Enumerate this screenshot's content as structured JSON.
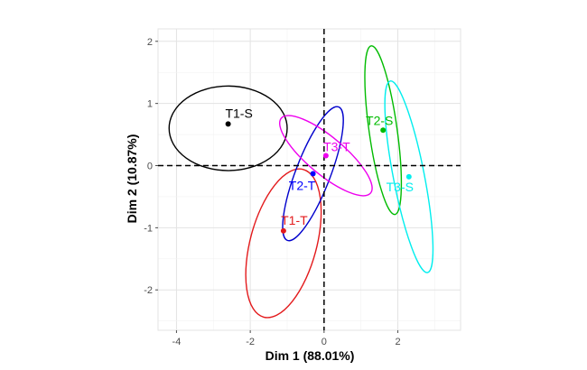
{
  "chart_data": {
    "type": "scatter",
    "xlabel": "Dim 1 (88.01%)",
    "ylabel": "Dim 2 (10.87%)",
    "xlim": [
      -4.5,
      3.7
    ],
    "ylim": [
      -2.65,
      2.2
    ],
    "x_ticks": [
      -4,
      -2,
      0,
      2
    ],
    "y_ticks": [
      -2,
      -1,
      0,
      1,
      2
    ],
    "x_tick_labels": [
      "-4",
      "-2",
      "0",
      "2"
    ],
    "y_tick_labels": [
      "-2",
      "-1",
      "0",
      "1",
      "2"
    ],
    "grid": true,
    "reference_lines": {
      "x": 0,
      "y": 0,
      "style": "dashed"
    },
    "points": [
      {
        "label": "T1-S",
        "x": -2.6,
        "y": 0.67,
        "color": "#000000"
      },
      {
        "label": "T1-T",
        "x": -1.1,
        "y": -1.05,
        "color": "#e31a1c"
      },
      {
        "label": "T2-T",
        "x": -0.3,
        "y": -0.13,
        "color": "#0000ff"
      },
      {
        "label": "T3-T",
        "x": 0.05,
        "y": 0.16,
        "color": "#ee00ee"
      },
      {
        "label": "T2-S",
        "x": 1.6,
        "y": 0.57,
        "color": "#00bb00"
      },
      {
        "label": "T3-S",
        "x": 2.3,
        "y": -0.18,
        "color": "#00eeee"
      }
    ],
    "ellipses": [
      {
        "group": "T1-S",
        "cx": -2.6,
        "cy": 0.6,
        "rx": 1.6,
        "ry": 0.68,
        "angle": 0,
        "color": "#000000"
      },
      {
        "group": "T1-T",
        "cx": -1.1,
        "cy": -1.25,
        "rx": 0.9,
        "ry": 1.23,
        "angle": 15,
        "color": "#e31a1c"
      },
      {
        "group": "T2-T",
        "cx": -0.3,
        "cy": -0.13,
        "rx": 0.47,
        "ry": 1.15,
        "angle": 21,
        "color": "#0000cc"
      },
      {
        "group": "T3-T",
        "cx": 0.05,
        "cy": 0.16,
        "rx": 1.58,
        "ry": 0.3,
        "angle": 40,
        "color": "#ee00ee"
      },
      {
        "group": "T2-S",
        "cx": 1.6,
        "cy": 0.57,
        "rx": 0.38,
        "ry": 1.37,
        "angle": -8,
        "color": "#00bb00"
      },
      {
        "group": "T3-S",
        "cx": 2.3,
        "cy": -0.18,
        "rx": 0.42,
        "ry": 1.57,
        "angle": -11,
        "color": "#00eeee"
      }
    ]
  }
}
